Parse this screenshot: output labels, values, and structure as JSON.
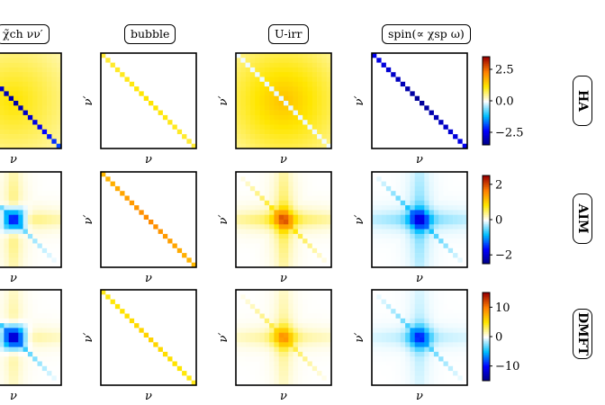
{
  "column_titles": [
    "χ̃ch νν′",
    "bubble",
    "U-irr",
    "spin(∝ χsp ω)"
  ],
  "row_labels": [
    "HA",
    "AIM",
    "DMFT"
  ],
  "axis_labels": {
    "x": "ν",
    "y": "ν′"
  },
  "colorbars": [
    {
      "row": "HA",
      "ticks": [
        2.5,
        0.0,
        -2.5
      ],
      "tick_labels": [
        "2.5",
        "0.0",
        "−2.5"
      ],
      "vmin": -3.5,
      "vmax": 3.5
    },
    {
      "row": "AIM",
      "ticks": [
        2,
        0,
        -2
      ],
      "tick_labels": [
        "2",
        "0",
        "−2"
      ],
      "vmin": -2.5,
      "vmax": 2.5
    },
    {
      "row": "DMFT",
      "ticks": [
        10,
        0,
        -10
      ],
      "tick_labels": [
        "10",
        "0",
        "−10"
      ],
      "vmin": -15,
      "vmax": 15
    }
  ],
  "colormap": [
    "#00007f",
    "#0000ff",
    "#00bfff",
    "#ffffff",
    "#ffe600",
    "#ff8000",
    "#9b0000"
  ],
  "chart_data": {
    "type": "heatmap",
    "grid_size": 20,
    "description_of_panels": [
      {
        "row": "HA",
        "col": "chi_ch",
        "diag": -3.2,
        "offdiag": 1.2,
        "pattern": "broad"
      },
      {
        "row": "HA",
        "col": "bubble",
        "diag": 1.2,
        "offdiag": 0.0,
        "pattern": "diag"
      },
      {
        "row": "HA",
        "col": "U-irr",
        "diag": -0.1,
        "offdiag": 1.6,
        "pattern": "broad"
      },
      {
        "row": "HA",
        "col": "spin",
        "diag": -3.3,
        "offdiag": 0.0,
        "pattern": "diag"
      },
      {
        "row": "AIM",
        "col": "chi_ch",
        "diag": -1.5,
        "offdiag": 0.7,
        "pattern": "cross"
      },
      {
        "row": "AIM",
        "col": "bubble",
        "diag": 1.6,
        "offdiag": 0.0,
        "pattern": "diag"
      },
      {
        "row": "AIM",
        "col": "U-irr",
        "diag": 2.2,
        "offdiag": 0.8,
        "pattern": "cross"
      },
      {
        "row": "AIM",
        "col": "spin",
        "diag": -2.1,
        "offdiag": -0.6,
        "pattern": "cross"
      },
      {
        "row": "DMFT",
        "col": "chi_ch",
        "diag": -12,
        "offdiag": 3,
        "pattern": "cross"
      },
      {
        "row": "DMFT",
        "col": "bubble",
        "diag": 6,
        "offdiag": 0,
        "pattern": "diag"
      },
      {
        "row": "DMFT",
        "col": "U-irr",
        "diag": 10,
        "offdiag": 3,
        "pattern": "cross"
      },
      {
        "row": "DMFT",
        "col": "spin",
        "diag": -10,
        "offdiag": -2,
        "pattern": "cross"
      }
    ]
  }
}
